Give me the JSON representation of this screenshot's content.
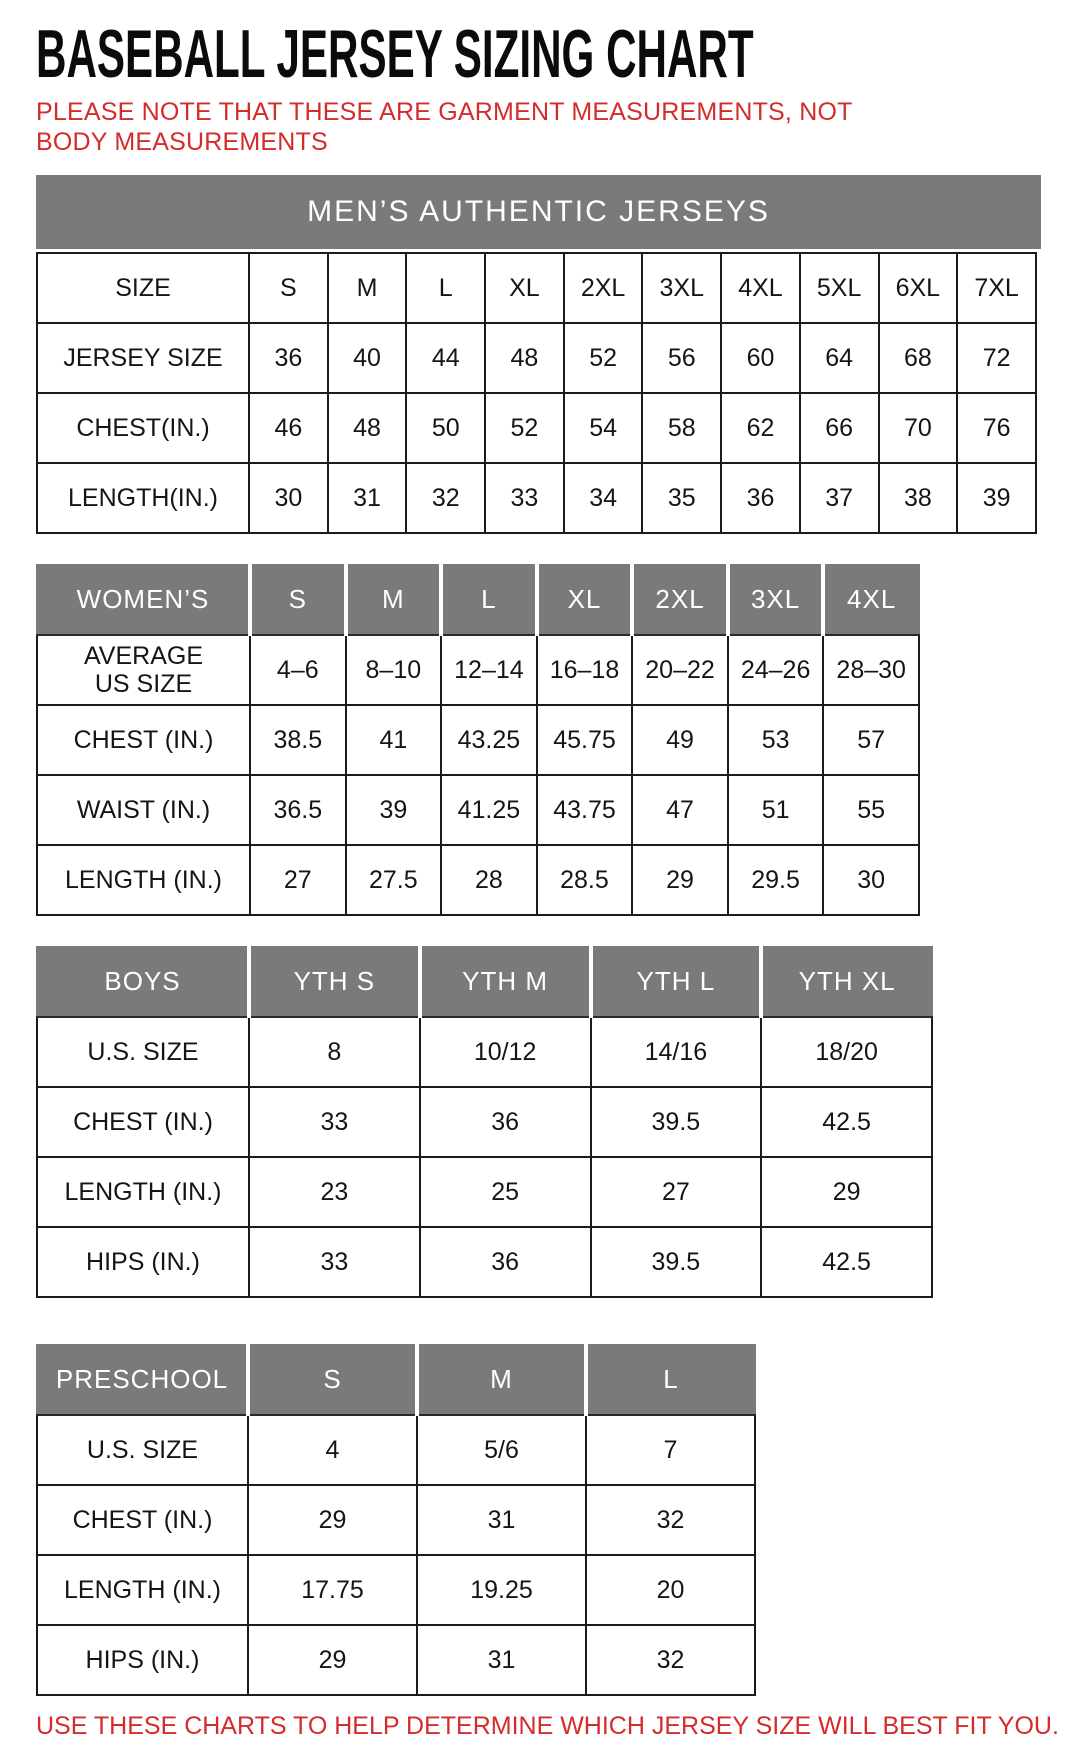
{
  "page": {
    "title": "BASEBALL JERSEY SIZING CHART",
    "note": "PLEASE NOTE THAT THESE ARE GARMENT MEASUREMENTS, NOT BODY MEASUREMENTS",
    "footer": "USE THESE CHARTS TO HELP DETERMINE WHICH JERSEY SIZE WILL BEST FIT YOU."
  },
  "colors": {
    "header_gray": "#7a7a7a",
    "accent_red": "#d42b2b",
    "text_black": "#151515",
    "border": "#1b1b1b"
  },
  "tables": {
    "mens": {
      "banner": "MEN’S AUTHENTIC JERSEYS",
      "rows": [
        {
          "label": "SIZE",
          "values": [
            "S",
            "M",
            "L",
            "XL",
            "2XL",
            "3XL",
            "4XL",
            "5XL",
            "6XL",
            "7XL"
          ]
        },
        {
          "label": "JERSEY SIZE",
          "values": [
            "36",
            "40",
            "44",
            "48",
            "52",
            "56",
            "60",
            "64",
            "68",
            "72"
          ]
        },
        {
          "label": "CHEST(IN.)",
          "values": [
            "46",
            "48",
            "50",
            "52",
            "54",
            "58",
            "62",
            "66",
            "70",
            "76"
          ]
        },
        {
          "label": "LENGTH(IN.)",
          "values": [
            "30",
            "31",
            "32",
            "33",
            "34",
            "35",
            "36",
            "37",
            "38",
            "39"
          ]
        }
      ]
    },
    "womens": {
      "header": {
        "label": "WOMEN’S",
        "sizes": [
          "S",
          "M",
          "L",
          "XL",
          "2XL",
          "3XL",
          "4XL"
        ]
      },
      "rows": [
        {
          "label": "AVERAGE\nUS SIZE",
          "values": [
            "4–6",
            "8–10",
            "12–14",
            "16–18",
            "20–22",
            "24–26",
            "28–30"
          ]
        },
        {
          "label": "CHEST (IN.)",
          "values": [
            "38.5",
            "41",
            "43.25",
            "45.75",
            "49",
            "53",
            "57"
          ]
        },
        {
          "label": "WAIST (IN.)",
          "values": [
            "36.5",
            "39",
            "41.25",
            "43.75",
            "47",
            "51",
            "55"
          ]
        },
        {
          "label": "LENGTH (IN.)",
          "values": [
            "27",
            "27.5",
            "28",
            "28.5",
            "29",
            "29.5",
            "30"
          ]
        }
      ]
    },
    "boys": {
      "header": {
        "label": "BOYS",
        "sizes": [
          "YTH S",
          "YTH M",
          "YTH L",
          "YTH XL"
        ]
      },
      "rows": [
        {
          "label": "U.S. SIZE",
          "values": [
            "8",
            "10/12",
            "14/16",
            "18/20"
          ]
        },
        {
          "label": "CHEST (IN.)",
          "values": [
            "33",
            "36",
            "39.5",
            "42.5"
          ]
        },
        {
          "label": "LENGTH (IN.)",
          "values": [
            "23",
            "25",
            "27",
            "29"
          ]
        },
        {
          "label": "HIPS (IN.)",
          "values": [
            "33",
            "36",
            "39.5",
            "42.5"
          ]
        }
      ]
    },
    "preschool": {
      "header": {
        "label": "PRESCHOOL",
        "sizes": [
          "S",
          "M",
          "L"
        ]
      },
      "rows": [
        {
          "label": "U.S. SIZE",
          "values": [
            "4",
            "5/6",
            "7"
          ]
        },
        {
          "label": "CHEST (IN.)",
          "values": [
            "29",
            "31",
            "32"
          ]
        },
        {
          "label": "LENGTH (IN.)",
          "values": [
            "17.75",
            "19.25",
            "20"
          ]
        },
        {
          "label": "HIPS (IN.)",
          "values": [
            "29",
            "31",
            "32"
          ]
        }
      ]
    }
  }
}
